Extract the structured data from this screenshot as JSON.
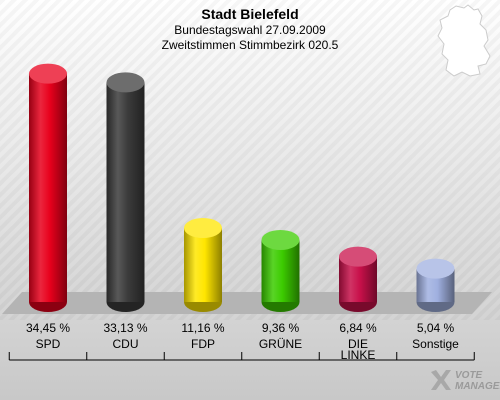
{
  "header": {
    "title": "Stadt Bielefeld",
    "subtitle1": "Bundestagswahl 27.09.2009",
    "subtitle2": "Zweitstimmen Stimmbezirk 020.5"
  },
  "logo": {
    "line1": "VOTE",
    "line2": "MANAGER",
    "icon": "x-check-icon"
  },
  "map_icon": "germany-map-icon",
  "chart_data": {
    "type": "bar",
    "title": "Stadt Bielefeld",
    "categories": [
      "SPD",
      "CDU",
      "FDP",
      "GRÜNE",
      "DIE LINKE",
      "Sonstige"
    ],
    "category_lines": [
      [
        "SPD"
      ],
      [
        "CDU"
      ],
      [
        "FDP"
      ],
      [
        "GRÜNE"
      ],
      [
        "DIE",
        "LINKE"
      ],
      [
        "Sonstige"
      ]
    ],
    "values": [
      34.45,
      33.13,
      11.16,
      9.36,
      6.84,
      5.04
    ],
    "value_labels": [
      "34,45 %",
      "33,13 %",
      "11,16 %",
      "9,36 %",
      "6,84 %",
      "5,04 %"
    ],
    "colors": [
      "#e8001c",
      "#3c3c3c",
      "#ffe600",
      "#3ccc00",
      "#c8104a",
      "#a0b0e0"
    ],
    "ylim": [
      0,
      35
    ],
    "grid": false,
    "legend": "none"
  }
}
